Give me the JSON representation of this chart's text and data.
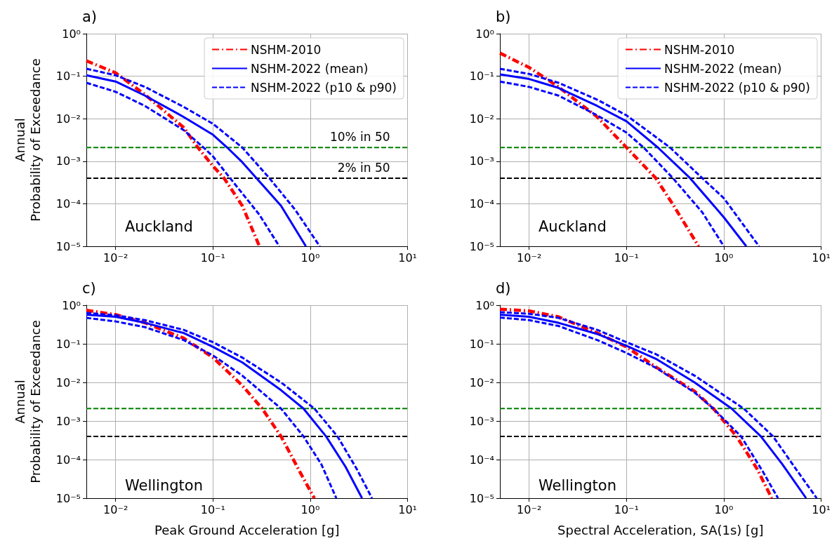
{
  "chart_data": [
    {
      "type": "line",
      "title": "a)",
      "ylabel": "Annual\nProbability of Exceedance",
      "log": "xy",
      "grid": true,
      "legend": "top right",
      "marker": "none",
      "xlim": [
        0.005,
        10
      ],
      "ylim": [
        1e-05,
        1
      ],
      "xticks": [
        {
          "value": 0.01,
          "label": "10⁻²"
        },
        {
          "value": 0.1,
          "label": "10⁻¹"
        },
        {
          "value": 1,
          "label": "10⁰"
        },
        {
          "value": 10,
          "label": "10¹"
        }
      ],
      "yticks": [
        {
          "value": 1e-05,
          "label": "10⁻⁵"
        },
        {
          "value": 0.0001,
          "label": "10⁻⁴"
        },
        {
          "value": 0.001,
          "label": "10⁻³"
        },
        {
          "value": 0.01,
          "label": "10⁻²"
        },
        {
          "value": 0.1,
          "label": "10⁻¹"
        },
        {
          "value": 1,
          "label": "10⁰"
        }
      ],
      "series": [
        {
          "name": "NSHM-2010",
          "color": "#ff0000",
          "line_style": "dashdot",
          "x": [
            0.005,
            0.01,
            0.02,
            0.05,
            0.07,
            0.1,
            0.13,
            0.2,
            0.3
          ],
          "values": [
            0.23,
            0.12,
            0.037,
            0.0062,
            0.0021,
            0.00077,
            0.0004,
            9e-05,
            1e-05
          ]
        },
        {
          "name": "NSHM-2022 (mean)",
          "color": "#0000ff",
          "line_style": "solid",
          "x": [
            0.005,
            0.01,
            0.02,
            0.05,
            0.1,
            0.14,
            0.2,
            0.28,
            0.5,
            0.9
          ],
          "values": [
            0.105,
            0.075,
            0.035,
            0.011,
            0.0042,
            0.0021,
            0.00095,
            0.0004,
            9e-05,
            1e-05
          ]
        },
        {
          "name": "NSHM-2022 (p10 & p90)",
          "color": "#0000ff",
          "line_style": "dashed",
          "x": [
            0.005,
            0.01,
            0.02,
            0.05,
            0.1,
            0.2,
            0.38,
            0.7,
            1.25
          ],
          "values": [
            0.15,
            0.105,
            0.056,
            0.019,
            0.0076,
            0.0021,
            0.0004,
            7.2e-05,
            1e-05
          ]
        },
        {
          "color": "#0000ff",
          "line_style": "dashed",
          "x": [
            0.005,
            0.01,
            0.02,
            0.05,
            0.08,
            0.1,
            0.15,
            0.3,
            0.48
          ],
          "values": [
            0.07,
            0.043,
            0.02,
            0.0054,
            0.0021,
            0.0013,
            0.0004,
            5.5e-05,
            1e-05
          ]
        }
      ],
      "ref_lines": [
        {
          "axis": "y",
          "value": 0.0021,
          "label": "10% in 50",
          "color": "#008000",
          "line_style": "dashed"
        },
        {
          "axis": "y",
          "value": 0.0004,
          "label": "2% in 50",
          "color": "#000000",
          "line_style": "dashed"
        }
      ],
      "annotations": [
        "Auckland"
      ]
    },
    {
      "type": "line",
      "title": "b)",
      "log": "xy",
      "grid": true,
      "legend": "top right",
      "marker": "none",
      "xlim": [
        0.005,
        10
      ],
      "ylim": [
        1e-05,
        1
      ],
      "xticks": [
        {
          "value": 0.01,
          "label": "10⁻²"
        },
        {
          "value": 0.1,
          "label": "10⁻¹"
        },
        {
          "value": 1,
          "label": "10⁰"
        },
        {
          "value": 10,
          "label": "10¹"
        }
      ],
      "yticks": [
        {
          "value": 1e-05,
          "label": "10⁻⁵"
        },
        {
          "value": 0.0001,
          "label": "10⁻⁴"
        },
        {
          "value": 0.001,
          "label": "10⁻³"
        },
        {
          "value": 0.01,
          "label": "10⁻²"
        },
        {
          "value": 0.1,
          "label": "10⁻¹"
        },
        {
          "value": 1,
          "label": "10⁰"
        }
      ],
      "series": [
        {
          "name": "NSHM-2010",
          "color": "#ff0000",
          "line_style": "dashdot",
          "x": [
            0.005,
            0.01,
            0.02,
            0.05,
            0.1,
            0.2,
            0.3,
            0.55
          ],
          "values": [
            0.35,
            0.16,
            0.056,
            0.011,
            0.0021,
            0.0004,
            9.6e-05,
            1e-05
          ]
        },
        {
          "name": "NSHM-2022 (mean)",
          "color": "#0000ff",
          "line_style": "solid",
          "x": [
            0.005,
            0.01,
            0.02,
            0.05,
            0.1,
            0.21,
            0.45,
            1,
            1.7
          ],
          "values": [
            0.11,
            0.086,
            0.053,
            0.02,
            0.0087,
            0.0021,
            0.0004,
            4.8e-05,
            1e-05
          ]
        },
        {
          "name": "NSHM-2022 (p10 & p90)",
          "color": "#0000ff",
          "line_style": "dashed",
          "x": [
            0.005,
            0.01,
            0.02,
            0.05,
            0.1,
            0.28,
            0.6,
            1,
            2.3
          ],
          "values": [
            0.15,
            0.113,
            0.07,
            0.028,
            0.012,
            0.0021,
            0.0004,
            0.000135,
            1e-05
          ]
        },
        {
          "color": "#0000ff",
          "line_style": "dashed",
          "x": [
            0.005,
            0.01,
            0.02,
            0.05,
            0.1,
            0.15,
            0.3,
            0.6,
            1
          ],
          "values": [
            0.075,
            0.056,
            0.035,
            0.012,
            0.0047,
            0.0021,
            0.0004,
            6.3e-05,
            1e-05
          ]
        }
      ],
      "ref_lines": [
        {
          "axis": "y",
          "value": 0.0021,
          "color": "#008000",
          "line_style": "dashed"
        },
        {
          "axis": "y",
          "value": 0.0004,
          "color": "#000000",
          "line_style": "dashed"
        }
      ],
      "annotations": [
        "Auckland"
      ]
    },
    {
      "type": "line",
      "title": "c)",
      "xlabel": "Peak Ground Acceleration [g]",
      "ylabel": "Annual\nProbability of Exceedance",
      "log": "xy",
      "grid": true,
      "marker": "none",
      "xlim": [
        0.005,
        10
      ],
      "ylim": [
        1e-05,
        1
      ],
      "xticks": [
        {
          "value": 0.01,
          "label": "10⁻²"
        },
        {
          "value": 0.1,
          "label": "10⁻¹"
        },
        {
          "value": 1,
          "label": "10⁰"
        },
        {
          "value": 10,
          "label": "10¹"
        }
      ],
      "yticks": [
        {
          "value": 1e-05,
          "label": "10⁻⁵"
        },
        {
          "value": 0.0001,
          "label": "10⁻⁴"
        },
        {
          "value": 0.001,
          "label": "10⁻³"
        },
        {
          "value": 0.01,
          "label": "10⁻²"
        },
        {
          "value": 0.1,
          "label": "10⁻¹"
        },
        {
          "value": 1,
          "label": "10⁰"
        }
      ],
      "series": [
        {
          "color": "#ff0000",
          "line_style": "dashdot",
          "x": [
            0.005,
            0.01,
            0.02,
            0.05,
            0.1,
            0.2,
            0.32,
            0.5,
            0.8,
            1.1
          ],
          "values": [
            0.74,
            0.57,
            0.35,
            0.14,
            0.044,
            0.0083,
            0.0021,
            0.0004,
            4.3e-05,
            1e-05
          ]
        },
        {
          "color": "#0000ff",
          "line_style": "solid",
          "x": [
            0.005,
            0.01,
            0.02,
            0.05,
            0.1,
            0.2,
            0.5,
            0.85,
            1.45,
            2.3,
            3.4
          ],
          "values": [
            0.57,
            0.5,
            0.35,
            0.19,
            0.083,
            0.033,
            0.0063,
            0.0021,
            0.0004,
            6.5e-05,
            1e-05
          ]
        },
        {
          "color": "#0000ff",
          "line_style": "dashed",
          "x": [
            0.005,
            0.01,
            0.02,
            0.05,
            0.1,
            0.2,
            0.5,
            1.1,
            1.9,
            3,
            4.3
          ],
          "values": [
            0.63,
            0.55,
            0.41,
            0.23,
            0.11,
            0.044,
            0.01,
            0.0021,
            0.0004,
            5.7e-05,
            1e-05
          ]
        },
        {
          "color": "#0000ff",
          "line_style": "dashed",
          "x": [
            0.005,
            0.01,
            0.02,
            0.05,
            0.1,
            0.2,
            0.5,
            0.85,
            1.3,
            1.85
          ],
          "values": [
            0.47,
            0.38,
            0.27,
            0.125,
            0.05,
            0.015,
            0.0021,
            0.0004,
            7.5e-05,
            1e-05
          ]
        }
      ],
      "ref_lines": [
        {
          "axis": "y",
          "value": 0.0021,
          "color": "#008000",
          "line_style": "dashed"
        },
        {
          "axis": "y",
          "value": 0.0004,
          "color": "#000000",
          "line_style": "dashed"
        }
      ],
      "annotations": [
        "Wellington"
      ]
    },
    {
      "type": "line",
      "title": "d)",
      "xlabel": "Spectral Acceleration, SA(1s) [g]",
      "log": "xy",
      "grid": true,
      "marker": "none",
      "xlim": [
        0.005,
        10
      ],
      "ylim": [
        1e-05,
        1
      ],
      "xticks": [
        {
          "value": 0.01,
          "label": "10⁻²"
        },
        {
          "value": 0.1,
          "label": "10⁻¹"
        },
        {
          "value": 1,
          "label": "10⁰"
        },
        {
          "value": 10,
          "label": "10¹"
        }
      ],
      "yticks": [
        {
          "value": 1e-05,
          "label": "10⁻⁵"
        },
        {
          "value": 0.0001,
          "label": "10⁻⁴"
        },
        {
          "value": 0.001,
          "label": "10⁻³"
        },
        {
          "value": 0.01,
          "label": "10⁻²"
        },
        {
          "value": 0.1,
          "label": "10⁻¹"
        },
        {
          "value": 1,
          "label": "10⁰"
        }
      ],
      "series": [
        {
          "color": "#ff0000",
          "line_style": "dashdot",
          "x": [
            0.005,
            0.01,
            0.02,
            0.05,
            0.1,
            0.2,
            0.5,
            0.78,
            1.35,
            2.2,
            3.1
          ],
          "values": [
            0.79,
            0.71,
            0.5,
            0.19,
            0.083,
            0.025,
            0.0059,
            0.0021,
            0.0004,
            5.7e-05,
            1e-05
          ]
        },
        {
          "color": "#0000ff",
          "line_style": "solid",
          "x": [
            0.005,
            0.01,
            0.02,
            0.05,
            0.1,
            0.2,
            0.5,
            1.2,
            2.4,
            4,
            7
          ],
          "values": [
            0.57,
            0.5,
            0.35,
            0.18,
            0.089,
            0.041,
            0.01,
            0.0021,
            0.0004,
            7.5e-05,
            1e-05
          ]
        },
        {
          "color": "#0000ff",
          "line_style": "dashed",
          "x": [
            0.005,
            0.01,
            0.02,
            0.05,
            0.1,
            0.2,
            0.5,
            1.6,
            3.2,
            5.5,
            9
          ],
          "values": [
            0.66,
            0.6,
            0.47,
            0.23,
            0.11,
            0.054,
            0.015,
            0.0021,
            0.0004,
            5.7e-05,
            1e-05
          ]
        },
        {
          "color": "#0000ff",
          "line_style": "dashed",
          "x": [
            0.005,
            0.01,
            0.02,
            0.05,
            0.1,
            0.2,
            0.5,
            0.78,
            1.5,
            2.5,
            3.6
          ],
          "values": [
            0.48,
            0.41,
            0.29,
            0.125,
            0.058,
            0.024,
            0.0055,
            0.0021,
            0.0004,
            5e-05,
            1e-05
          ]
        }
      ],
      "ref_lines": [
        {
          "axis": "y",
          "value": 0.0021,
          "color": "#008000",
          "line_style": "dashed"
        },
        {
          "axis": "y",
          "value": 0.0004,
          "color": "#000000",
          "line_style": "dashed"
        }
      ],
      "annotations": [
        "Wellington"
      ]
    }
  ]
}
